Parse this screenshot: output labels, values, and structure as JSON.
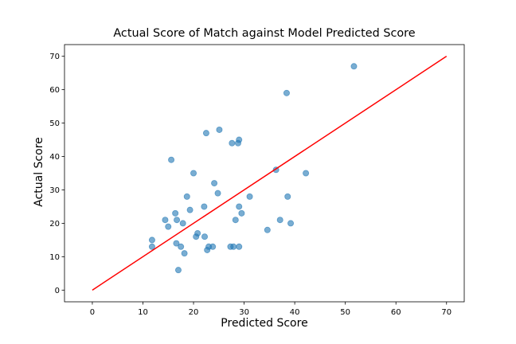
{
  "chart_data": {
    "type": "scatter",
    "title": "Actual Score of Match against Model Predicted Score",
    "xlabel": "Predicted Score",
    "ylabel": "Actual Score",
    "xlim": [
      -5.5,
      73.5
    ],
    "ylim": [
      -3.5,
      73.5
    ],
    "xticks": [
      "0",
      "10",
      "20",
      "30",
      "40",
      "50",
      "60",
      "70"
    ],
    "yticks": [
      "0",
      "10",
      "20",
      "30",
      "40",
      "50",
      "60",
      "70"
    ],
    "grid": false,
    "legend": "none",
    "series": [
      {
        "kind": "points",
        "color": "#1f77b4",
        "points": [
          {
            "x": 11.8,
            "y": 15
          },
          {
            "x": 11.8,
            "y": 13
          },
          {
            "x": 14.4,
            "y": 21
          },
          {
            "x": 15.0,
            "y": 19
          },
          {
            "x": 15.6,
            "y": 39
          },
          {
            "x": 16.4,
            "y": 23
          },
          {
            "x": 16.6,
            "y": 14
          },
          {
            "x": 16.7,
            "y": 21
          },
          {
            "x": 17.0,
            "y": 6
          },
          {
            "x": 17.5,
            "y": 13
          },
          {
            "x": 17.9,
            "y": 20
          },
          {
            "x": 18.2,
            "y": 11
          },
          {
            "x": 18.7,
            "y": 28
          },
          {
            "x": 19.3,
            "y": 24
          },
          {
            "x": 20.0,
            "y": 35
          },
          {
            "x": 20.5,
            "y": 16
          },
          {
            "x": 20.8,
            "y": 17
          },
          {
            "x": 22.1,
            "y": 25
          },
          {
            "x": 22.2,
            "y": 16
          },
          {
            "x": 22.5,
            "y": 47
          },
          {
            "x": 22.7,
            "y": 12
          },
          {
            "x": 23.0,
            "y": 13
          },
          {
            "x": 23.8,
            "y": 13
          },
          {
            "x": 24.1,
            "y": 32
          },
          {
            "x": 24.8,
            "y": 29
          },
          {
            "x": 25.1,
            "y": 48
          },
          {
            "x": 27.3,
            "y": 13
          },
          {
            "x": 27.6,
            "y": 44
          },
          {
            "x": 27.9,
            "y": 13
          },
          {
            "x": 28.3,
            "y": 21
          },
          {
            "x": 28.8,
            "y": 44
          },
          {
            "x": 29.0,
            "y": 45
          },
          {
            "x": 29.0,
            "y": 25
          },
          {
            "x": 29.0,
            "y": 13
          },
          {
            "x": 29.5,
            "y": 23
          },
          {
            "x": 31.1,
            "y": 28
          },
          {
            "x": 34.6,
            "y": 18
          },
          {
            "x": 36.3,
            "y": 36
          },
          {
            "x": 37.1,
            "y": 21
          },
          {
            "x": 38.4,
            "y": 59
          },
          {
            "x": 38.6,
            "y": 28
          },
          {
            "x": 39.2,
            "y": 20
          },
          {
            "x": 42.2,
            "y": 35
          },
          {
            "x": 51.7,
            "y": 67
          }
        ]
      },
      {
        "kind": "line",
        "color": "#ff0000",
        "x": [
          0,
          70
        ],
        "y": [
          0,
          70
        ]
      }
    ]
  }
}
